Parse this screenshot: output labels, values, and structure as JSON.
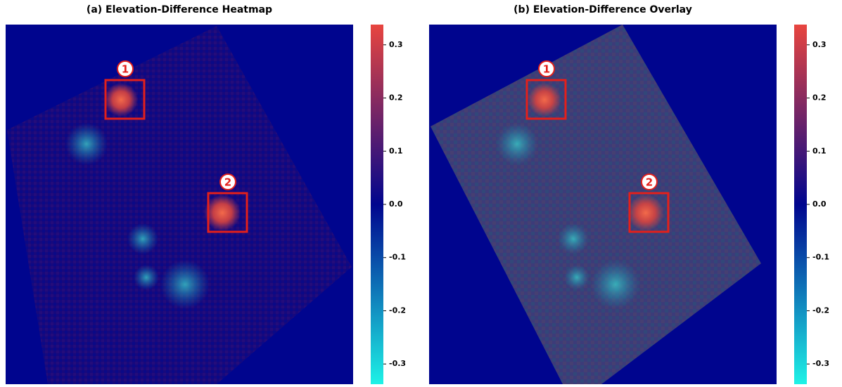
{
  "chart_data": [
    {
      "type": "heatmap",
      "title": "(a) Elevation-Difference Heatmap",
      "annotations": [
        "1",
        "2"
      ],
      "colormap": [
        "#1ef2e6",
        "#00058e",
        "#e8453f"
      ],
      "ylim": [
        -0.338,
        0.338
      ],
      "yticks": [
        -0.3,
        -0.2,
        -0.1,
        {
          "value": 0,
          "label": "0.0"
        },
        0.1,
        0.2,
        0.3
      ]
    },
    {
      "type": "overlay",
      "title": "(b) Elevation-Difference Overlay",
      "annotations": [
        "1",
        "2"
      ],
      "colormap": [
        "#1ef2e6",
        "#00058e",
        "#e8453f"
      ],
      "ylim": [
        -0.338,
        0.338
      ],
      "yticks": [
        -0.3,
        -0.2,
        -0.1,
        {
          "value": 0,
          "label": "0.0"
        },
        0.1,
        0.2,
        0.3
      ]
    }
  ]
}
